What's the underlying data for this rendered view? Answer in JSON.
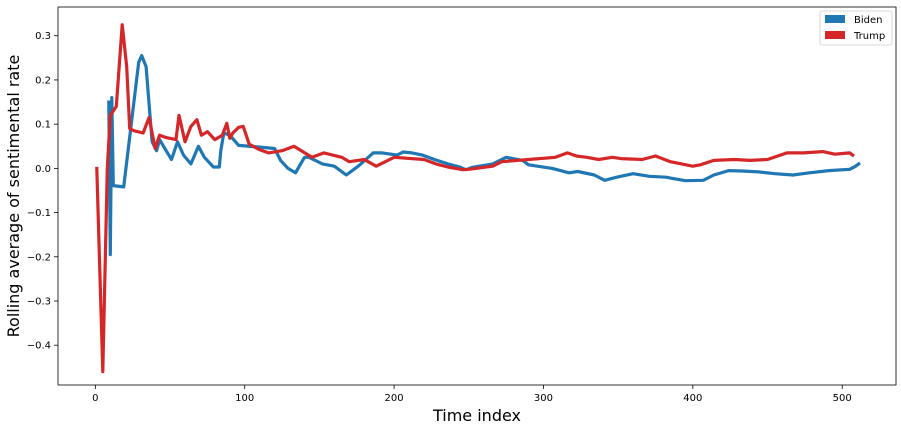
{
  "chart_data": {
    "type": "line",
    "title": "",
    "xlabel": "Time index",
    "ylabel": "Rolling average of sentimental rate",
    "xlim": [
      -25,
      536
    ],
    "ylim": [
      -0.49,
      0.365
    ],
    "xticks": [
      0,
      100,
      200,
      300,
      400,
      500
    ],
    "yticks": [
      -0.4,
      -0.3,
      -0.2,
      -0.1,
      0.0,
      0.1,
      0.2,
      0.3
    ],
    "xtick_labels": [
      "0",
      "100",
      "200",
      "300",
      "400",
      "500"
    ],
    "ytick_labels": [
      "−0.4",
      "−0.3",
      "−0.2",
      "−0.1",
      "0.0",
      "0.1",
      "0.2",
      "0.3"
    ],
    "grid": false,
    "legend_position": "top-right",
    "series": [
      {
        "name": "Biden",
        "color": "#1f77b4",
        "x": [
          9,
          10,
          11,
          12,
          19,
          29,
          31,
          34,
          38,
          41,
          43,
          47,
          51,
          55,
          59,
          64,
          69,
          73,
          79,
          83,
          84,
          86,
          90,
          96,
          110,
          120,
          124,
          129,
          134,
          140,
          143,
          152,
          160,
          168,
          176,
          186,
          192,
          202,
          206,
          212,
          219,
          227,
          236,
          244,
          248,
          252,
          266,
          275,
          286,
          290,
          306,
          317,
          323,
          334,
          341,
          349,
          360,
          371,
          382,
          385,
          395,
          407,
          414,
          424,
          433,
          444,
          455,
          467,
          478,
          491,
          505,
          509,
          511
        ],
        "y": [
          0.15,
          -0.195,
          0.16,
          -0.039,
          -0.042,
          0.24,
          0.255,
          0.23,
          0.06,
          0.04,
          0.065,
          0.042,
          0.02,
          0.06,
          0.03,
          0.01,
          0.05,
          0.025,
          0.003,
          0.003,
          0.04,
          0.08,
          0.075,
          0.052,
          0.048,
          0.045,
          0.018,
          0.0,
          -0.01,
          0.025,
          0.025,
          0.01,
          0.005,
          -0.015,
          0.005,
          0.035,
          0.035,
          0.03,
          0.037,
          0.035,
          0.03,
          0.02,
          0.01,
          0.003,
          -0.003,
          0.002,
          0.01,
          0.025,
          0.018,
          0.008,
          0.0,
          -0.01,
          -0.007,
          -0.015,
          -0.027,
          -0.02,
          -0.012,
          -0.018,
          -0.02,
          -0.022,
          -0.028,
          -0.027,
          -0.015,
          -0.005,
          -0.006,
          -0.008,
          -0.012,
          -0.015,
          -0.01,
          -0.005,
          -0.002,
          0.005,
          0.01
        ]
      },
      {
        "name": "Trump",
        "color": "#d62728",
        "x": [
          1,
          5,
          8,
          10,
          14,
          18,
          21,
          23,
          26,
          32,
          36,
          40,
          43,
          47,
          54,
          56,
          60,
          64,
          68,
          71,
          75,
          80,
          85,
          88,
          90,
          92,
          96,
          99,
          103,
          110,
          116,
          125,
          133,
          145,
          153,
          165,
          170,
          180,
          188,
          200,
          220,
          228,
          236,
          246,
          250,
          266,
          272,
          290,
          308,
          316,
          322,
          329,
          337,
          346,
          352,
          366,
          375,
          385,
          400,
          405,
          414,
          428,
          438,
          450,
          463,
          474,
          487,
          495,
          505,
          507
        ],
        "y": [
          0.0,
          -0.46,
          0.0,
          0.12,
          0.14,
          0.325,
          0.23,
          0.09,
          0.085,
          0.08,
          0.115,
          0.045,
          0.075,
          0.07,
          0.065,
          0.12,
          0.06,
          0.095,
          0.11,
          0.075,
          0.083,
          0.065,
          0.075,
          0.102,
          0.068,
          0.08,
          0.093,
          0.095,
          0.055,
          0.042,
          0.035,
          0.04,
          0.05,
          0.025,
          0.035,
          0.025,
          0.015,
          0.02,
          0.005,
          0.025,
          0.02,
          0.01,
          0.003,
          -0.003,
          -0.002,
          0.005,
          0.015,
          0.02,
          0.025,
          0.035,
          0.028,
          0.025,
          0.02,
          0.025,
          0.022,
          0.02,
          0.028,
          0.015,
          0.005,
          0.008,
          0.018,
          0.02,
          0.018,
          0.02,
          0.035,
          0.035,
          0.038,
          0.032,
          0.035,
          0.03
        ]
      }
    ]
  }
}
